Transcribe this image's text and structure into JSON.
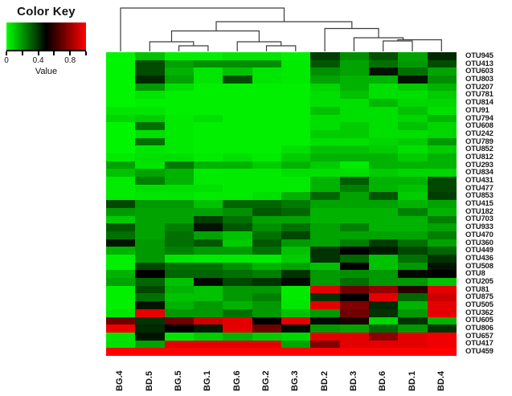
{
  "color_key": {
    "title": "Color Key",
    "xlabel": "Value",
    "ticks": [
      {
        "label": "0",
        "pos": 0.0
      },
      {
        "label": "0.4",
        "pos": 0.4
      },
      {
        "label": "0.8",
        "pos": 0.8
      }
    ],
    "gradient_low": "#00ff00",
    "gradient_mid": "#000000",
    "gradient_high": "#ff0000"
  },
  "chart_data": {
    "type": "heatmap",
    "title": "",
    "xlabel": "",
    "ylabel": "",
    "value_range": [
      0,
      1
    ],
    "colorscale": {
      "0": "#00ff00",
      "0.5": "#000000",
      "1": "#ff0000"
    },
    "legend_position": "top-left",
    "col_dendrogram": "(BG.4,(((BD.5,(BG.5,BG.1)),(BG.6,(BG.2,BG.3))),(BD.2,(BD.3,((BD.6,BD.1),BD.4)))))",
    "categories": [
      "BG.4",
      "BD.5",
      "BG.5",
      "BG.1",
      "BG.6",
      "BG.2",
      "BG.3",
      "BD.2",
      "BD.3",
      "BD.6",
      "BD.1",
      "BD.4"
    ],
    "rows": [
      "OTU945",
      "OTU413",
      "OTU603",
      "OTU803",
      "OTU207",
      "OTU781",
      "OTU814",
      "OTU91",
      "OTU794",
      "OTU608",
      "OTU242",
      "OTU789",
      "OTU852",
      "OTU812",
      "OTU293",
      "OTU834",
      "OTU431",
      "OTU477",
      "OTU853",
      "OTU415",
      "OTU182",
      "OTU703",
      "OTU933",
      "OTU470",
      "OTU360",
      "OTU449",
      "OTU436",
      "OTU508",
      "OTU8",
      "OTU205",
      "OTU81",
      "OTU875",
      "OTU505",
      "OTU362",
      "OTU605",
      "OTU806",
      "OTU657",
      "OTU417",
      "OTU459"
    ],
    "values": [
      [
        0.02,
        0.12,
        0.03,
        0.03,
        0.05,
        0.05,
        0.03,
        0.38,
        0.22,
        0.34,
        0.18,
        0.42
      ],
      [
        0.02,
        0.35,
        0.18,
        0.22,
        0.22,
        0.22,
        0.04,
        0.33,
        0.18,
        0.28,
        0.2,
        0.35
      ],
      [
        0.02,
        0.35,
        0.15,
        0.05,
        0.12,
        0.05,
        0.04,
        0.22,
        0.18,
        0.46,
        0.28,
        0.18
      ],
      [
        0.02,
        0.42,
        0.18,
        0.05,
        0.35,
        0.05,
        0.04,
        0.18,
        0.15,
        0.15,
        0.46,
        0.22
      ],
      [
        0.02,
        0.2,
        0.06,
        0.03,
        0.03,
        0.03,
        0.03,
        0.08,
        0.15,
        0.06,
        0.1,
        0.15
      ],
      [
        0.02,
        0.05,
        0.03,
        0.03,
        0.03,
        0.03,
        0.03,
        0.06,
        0.12,
        0.06,
        0.06,
        0.1
      ],
      [
        0.02,
        0.03,
        0.03,
        0.03,
        0.03,
        0.03,
        0.03,
        0.06,
        0.06,
        0.14,
        0.08,
        0.08
      ],
      [
        0.05,
        0.05,
        0.03,
        0.03,
        0.03,
        0.03,
        0.03,
        0.12,
        0.06,
        0.06,
        0.12,
        0.06
      ],
      [
        0.08,
        0.1,
        0.04,
        0.06,
        0.03,
        0.03,
        0.03,
        0.06,
        0.06,
        0.06,
        0.08,
        0.14
      ],
      [
        0.02,
        0.28,
        0.04,
        0.03,
        0.03,
        0.03,
        0.03,
        0.06,
        0.1,
        0.06,
        0.12,
        0.08
      ],
      [
        0.02,
        0.06,
        0.04,
        0.03,
        0.03,
        0.03,
        0.03,
        0.1,
        0.1,
        0.06,
        0.06,
        0.08
      ],
      [
        0.02,
        0.28,
        0.04,
        0.03,
        0.03,
        0.03,
        0.03,
        0.06,
        0.06,
        0.08,
        0.1,
        0.2
      ],
      [
        0.02,
        0.05,
        0.04,
        0.03,
        0.03,
        0.03,
        0.06,
        0.12,
        0.12,
        0.1,
        0.06,
        0.1
      ],
      [
        0.04,
        0.06,
        0.06,
        0.04,
        0.06,
        0.04,
        0.1,
        0.15,
        0.15,
        0.15,
        0.1,
        0.15
      ],
      [
        0.18,
        0.05,
        0.26,
        0.15,
        0.15,
        0.1,
        0.15,
        0.1,
        0.04,
        0.15,
        0.15,
        0.15
      ],
      [
        0.12,
        0.18,
        0.15,
        0.04,
        0.04,
        0.04,
        0.06,
        0.06,
        0.06,
        0.1,
        0.08,
        0.08
      ],
      [
        0.04,
        0.25,
        0.15,
        0.04,
        0.04,
        0.04,
        0.04,
        0.15,
        0.32,
        0.15,
        0.15,
        0.36
      ],
      [
        0.04,
        0.06,
        0.06,
        0.06,
        0.04,
        0.04,
        0.04,
        0.15,
        0.25,
        0.15,
        0.12,
        0.36
      ],
      [
        0.04,
        0.05,
        0.05,
        0.04,
        0.04,
        0.06,
        0.15,
        0.3,
        0.18,
        0.33,
        0.1,
        0.38
      ],
      [
        0.36,
        0.2,
        0.2,
        0.12,
        0.3,
        0.3,
        0.26,
        0.18,
        0.18,
        0.18,
        0.15,
        0.18
      ],
      [
        0.2,
        0.18,
        0.18,
        0.18,
        0.22,
        0.33,
        0.3,
        0.15,
        0.15,
        0.15,
        0.25,
        0.15
      ],
      [
        0.1,
        0.18,
        0.18,
        0.38,
        0.28,
        0.18,
        0.18,
        0.15,
        0.15,
        0.15,
        0.15,
        0.25
      ],
      [
        0.33,
        0.18,
        0.25,
        0.46,
        0.33,
        0.22,
        0.28,
        0.18,
        0.25,
        0.15,
        0.15,
        0.18
      ],
      [
        0.28,
        0.18,
        0.28,
        0.18,
        0.12,
        0.28,
        0.36,
        0.18,
        0.18,
        0.18,
        0.18,
        0.25
      ],
      [
        0.46,
        0.2,
        0.28,
        0.33,
        0.1,
        0.33,
        0.2,
        0.18,
        0.25,
        0.38,
        0.28,
        0.18
      ],
      [
        0.15,
        0.2,
        0.25,
        0.2,
        0.2,
        0.28,
        0.12,
        0.4,
        0.5,
        0.45,
        0.36,
        0.3
      ],
      [
        0.03,
        0.2,
        0.05,
        0.04,
        0.04,
        0.04,
        0.1,
        0.4,
        0.3,
        0.12,
        0.28,
        0.4
      ],
      [
        0.03,
        0.36,
        0.28,
        0.28,
        0.22,
        0.15,
        0.18,
        0.12,
        0.5,
        0.12,
        0.2,
        0.46
      ],
      [
        0.15,
        0.5,
        0.3,
        0.3,
        0.28,
        0.25,
        0.4,
        0.2,
        0.22,
        0.2,
        0.48,
        0.5
      ],
      [
        0.18,
        0.3,
        0.12,
        0.48,
        0.36,
        0.4,
        0.48,
        0.2,
        0.28,
        0.2,
        0.2,
        0.12
      ],
      [
        0.03,
        0.36,
        0.15,
        0.12,
        0.2,
        0.2,
        0.04,
        0.95,
        0.72,
        0.8,
        0.58,
        0.95
      ],
      [
        0.03,
        0.28,
        0.12,
        0.12,
        0.2,
        0.25,
        0.04,
        0.4,
        0.5,
        0.95,
        0.3,
        0.9
      ],
      [
        0.03,
        0.46,
        0.15,
        0.2,
        0.15,
        0.2,
        0.05,
        0.95,
        0.75,
        0.42,
        0.15,
        0.95
      ],
      [
        0.05,
        0.95,
        0.2,
        0.2,
        0.28,
        0.2,
        0.12,
        0.2,
        0.72,
        0.4,
        0.2,
        0.95
      ],
      [
        0.72,
        0.4,
        0.72,
        0.9,
        0.95,
        0.5,
        0.95,
        0.48,
        0.55,
        0.08,
        0.4,
        0.15
      ],
      [
        0.97,
        0.42,
        0.5,
        0.45,
        0.95,
        0.72,
        0.48,
        0.2,
        0.18,
        0.3,
        0.2,
        0.4
      ],
      [
        0.05,
        0.46,
        0.05,
        0.1,
        0.15,
        0.1,
        0.08,
        0.95,
        0.95,
        0.78,
        0.95,
        0.97
      ],
      [
        0.06,
        0.18,
        0.95,
        0.95,
        0.95,
        0.95,
        0.18,
        0.75,
        0.95,
        0.95,
        0.95,
        0.97
      ],
      [
        1.0,
        1.0,
        1.0,
        1.0,
        1.0,
        1.0,
        1.0,
        1.0,
        1.0,
        1.0,
        1.0,
        1.0
      ]
    ]
  }
}
